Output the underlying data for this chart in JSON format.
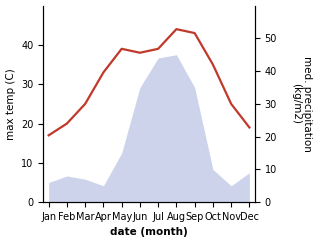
{
  "months": [
    "Jan",
    "Feb",
    "Mar",
    "Apr",
    "May",
    "Jun",
    "Jul",
    "Aug",
    "Sep",
    "Oct",
    "Nov",
    "Dec"
  ],
  "temperature": [
    17,
    20,
    25,
    33,
    39,
    38,
    39,
    44,
    43,
    35,
    25,
    19
  ],
  "precipitation": [
    6,
    8,
    7,
    5,
    15,
    35,
    44,
    45,
    35,
    10,
    5,
    9
  ],
  "temp_color": "#c0392b",
  "precip_fill_color": "#c5cce8",
  "precip_alpha": 0.85,
  "background_color": "#ffffff",
  "ylabel_left": "max temp (C)",
  "ylabel_right": "med. precipitation\n(kg/m2)",
  "xlabel": "date (month)",
  "ylim_left": [
    0,
    50
  ],
  "ylim_right": [
    0,
    60
  ],
  "yticks_left": [
    0,
    10,
    20,
    30,
    40
  ],
  "yticks_right": [
    0,
    10,
    20,
    30,
    40,
    50
  ],
  "label_fontsize": 7.5,
  "tick_fontsize": 7,
  "line_width": 1.6
}
